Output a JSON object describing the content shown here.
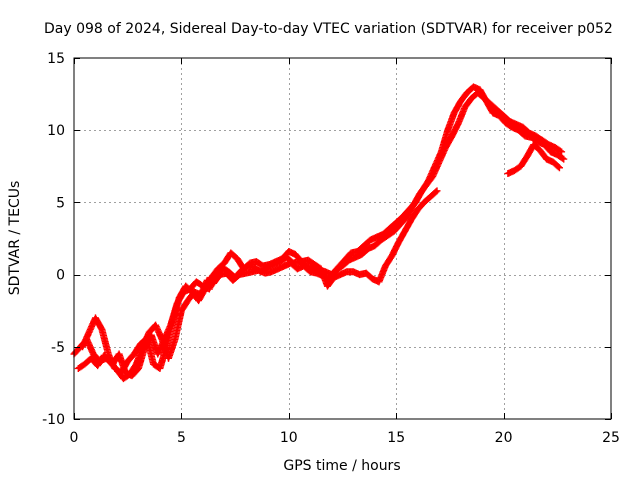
{
  "chart_data": {
    "type": "scatter",
    "title": "Day 098 of 2024, Sidereal Day-to-day VTEC variation (SDTVAR) for receiver p052",
    "xlabel": "GPS time / hours",
    "ylabel": "SDTVAR / TECUs",
    "xlim": [
      0,
      25
    ],
    "ylim": [
      -10,
      15
    ],
    "xticks": [
      0,
      5,
      10,
      15,
      20,
      25
    ],
    "yticks": [
      -10,
      -5,
      0,
      5,
      10,
      15
    ],
    "grid": true,
    "marker": "+",
    "series": [
      {
        "name": "SDTVAR",
        "color": "#ff0000",
        "tracks": [
          {
            "x": [
              0.0,
              0.3,
              0.6,
              0.9,
              1.2,
              1.5,
              1.8,
              2.1,
              2.4,
              2.7,
              3.0,
              3.3,
              3.6,
              3.9,
              4.2,
              4.5,
              4.8,
              5.1,
              5.4,
              5.7,
              6.0,
              6.3,
              6.6,
              6.9,
              7.2,
              7.5,
              7.8,
              8.1,
              8.4,
              8.7,
              9.0,
              9.3,
              9.6,
              9.9,
              10.2,
              10.5,
              10.8,
              11.1,
              11.4,
              11.7,
              12.0,
              12.3,
              12.6,
              12.9,
              13.2,
              13.5,
              13.8,
              14.1,
              14.4,
              14.7,
              15.0,
              15.3,
              15.6,
              15.9,
              16.2,
              16.5,
              16.8,
              17.1,
              17.4,
              17.7,
              18.0,
              18.3,
              18.6,
              18.9,
              19.2,
              19.5,
              19.8,
              20.1,
              20.4,
              20.7,
              21.0,
              21.3,
              21.6,
              21.9,
              22.2,
              22.5,
              22.8
            ],
            "y": [
              -5.5,
              -5.0,
              -4.5,
              -5.5,
              -6.0,
              -5.8,
              -6.2,
              -5.5,
              -6.8,
              -7.0,
              -6.5,
              -5.0,
              -4.2,
              -5.5,
              -4.5,
              -3.5,
              -2.0,
              -1.2,
              -1.0,
              -0.5,
              -0.8,
              -1.0,
              0.0,
              0.5,
              0.2,
              -0.2,
              0.3,
              0.6,
              0.5,
              0.2,
              0.5,
              0.7,
              0.9,
              1.2,
              0.8,
              0.9,
              0.6,
              0.5,
              0.3,
              0.2,
              0.0,
              0.5,
              1.0,
              1.5,
              1.6,
              2.0,
              2.4,
              2.6,
              2.8,
              3.2,
              3.6,
              4.0,
              4.5,
              5.0,
              5.8,
              6.5,
              7.5,
              8.5,
              10.0,
              11.2,
              12.0,
              12.6,
              13.0,
              12.8,
              12.0,
              11.2,
              11.0,
              10.5,
              10.2,
              10.0,
              9.6,
              9.5,
              9.2,
              9.0,
              8.5,
              8.3,
              8.0
            ]
          },
          {
            "x": [
              0.2,
              0.5,
              0.8,
              1.1,
              1.4,
              1.7,
              2.0,
              2.3,
              2.6,
              2.9,
              3.2,
              3.5,
              3.8,
              4.1,
              4.4,
              4.7,
              5.0,
              5.3,
              5.6,
              5.9,
              6.2,
              6.5,
              6.8,
              7.1,
              7.4,
              7.7,
              8.0,
              8.3,
              8.6,
              8.9,
              9.2,
              9.5,
              9.8,
              10.1,
              10.4,
              10.7,
              11.0,
              11.3,
              11.6,
              11.9,
              12.2,
              12.5,
              12.8,
              13.1,
              13.4,
              13.7,
              14.0,
              14.3,
              14.6,
              14.9,
              15.2,
              15.5,
              15.8,
              16.1,
              16.4,
              16.7,
              17.0,
              17.3,
              17.6,
              17.9,
              18.2,
              18.5,
              18.8,
              19.1,
              19.4,
              19.7,
              20.0,
              20.3,
              20.6,
              20.9,
              21.2,
              21.5,
              21.8,
              22.1,
              22.4,
              22.7
            ],
            "y": [
              -6.5,
              -6.2,
              -5.8,
              -6.3,
              -5.6,
              -6.1,
              -6.6,
              -7.2,
              -6.9,
              -6.2,
              -5.0,
              -4.0,
              -3.5,
              -4.5,
              -5.8,
              -4.5,
              -2.5,
              -1.8,
              -1.2,
              -1.4,
              -0.4,
              -0.6,
              0.0,
              0.1,
              -0.4,
              0.0,
              0.1,
              0.2,
              0.3,
              0.1,
              0.2,
              0.4,
              0.6,
              0.8,
              0.4,
              0.6,
              0.2,
              0.1,
              -0.1,
              -0.4,
              0.3,
              0.6,
              1.0,
              1.2,
              1.4,
              1.8,
              2.0,
              2.4,
              2.7,
              3.0,
              3.5,
              4.0,
              4.8,
              5.6,
              6.2,
              6.8,
              7.8,
              8.8,
              9.6,
              10.5,
              11.6,
              12.2,
              12.6,
              12.2,
              11.8,
              11.4,
              11.0,
              10.6,
              10.4,
              10.2,
              9.8,
              9.6,
              9.3,
              9.0,
              8.8,
              8.5
            ]
          },
          {
            "x": [
              0.4,
              0.7,
              1.0,
              1.3,
              1.6,
              1.9,
              2.2,
              2.5,
              2.8,
              3.1,
              3.4,
              3.7,
              4.0,
              4.3,
              4.6,
              4.9,
              5.2,
              5.5,
              5.8,
              6.1,
              6.4,
              6.7,
              7.0,
              7.3,
              7.6,
              7.9,
              8.2,
              8.5,
              8.8,
              9.1,
              9.4,
              9.7,
              10.0,
              10.3,
              10.6,
              10.9,
              11.2,
              11.5,
              11.8,
              12.1,
              12.4,
              12.7,
              13.0,
              13.3,
              13.6,
              13.9,
              14.2,
              14.5,
              14.8,
              15.1,
              15.4,
              15.7,
              16.0,
              16.3,
              16.6,
              16.9
            ],
            "y": [
              -5.0,
              -4.0,
              -3.0,
              -3.8,
              -5.5,
              -6.5,
              -6.8,
              -6.0,
              -5.5,
              -4.8,
              -4.4,
              -6.2,
              -6.5,
              -5.0,
              -3.2,
              -1.6,
              -0.8,
              -1.2,
              -1.8,
              -1.0,
              -0.2,
              0.4,
              0.8,
              1.5,
              1.1,
              0.4,
              0.8,
              0.9,
              0.6,
              0.7,
              0.9,
              1.1,
              1.6,
              1.4,
              0.9,
              1.0,
              0.7,
              0.4,
              -0.8,
              -0.2,
              0.0,
              0.2,
              0.2,
              0.0,
              0.1,
              -0.3,
              -0.5,
              0.6,
              1.3,
              2.2,
              3.0,
              3.8,
              4.5,
              5.0,
              5.4,
              5.8
            ]
          },
          {
            "x": [
              20.2,
              20.5,
              20.8,
              21.1,
              21.4,
              21.7,
              22.0,
              22.3,
              22.6
            ],
            "y": [
              7.0,
              7.2,
              7.5,
              8.2,
              9.0,
              8.6,
              8.0,
              7.8,
              7.4
            ]
          }
        ]
      }
    ]
  }
}
